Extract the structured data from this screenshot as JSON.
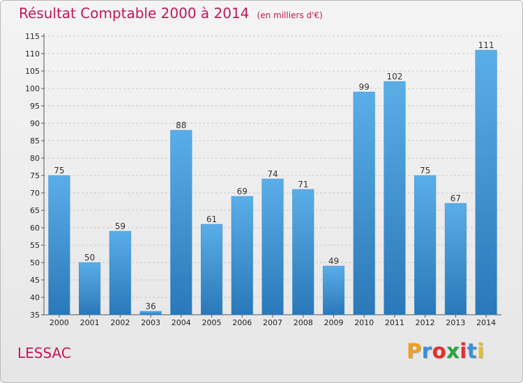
{
  "header": {
    "title": "Résultat Comptable 2000 à 2014",
    "subtitle": "(en milliers d'€)"
  },
  "location": "LESSAC",
  "logo": {
    "text": "Proxiti",
    "colors": [
      "#f0a020",
      "#3c8fd6",
      "#e03030",
      "#2aa640",
      "#e03030",
      "#3c8fd6",
      "#e6c020"
    ]
  },
  "chart_data": {
    "type": "bar",
    "title": "Résultat Comptable 2000 à 2014",
    "subtitle": "(en milliers d'€)",
    "categories": [
      "2000",
      "2001",
      "2002",
      "2003",
      "2004",
      "2005",
      "2006",
      "2007",
      "2008",
      "2009",
      "2010",
      "2011",
      "2012",
      "2013",
      "2014"
    ],
    "values": [
      75,
      50,
      59,
      36,
      88,
      61,
      69,
      74,
      71,
      49,
      99,
      102,
      75,
      67,
      111
    ],
    "ylim": [
      35,
      115
    ],
    "yticks": [
      35,
      40,
      45,
      50,
      55,
      60,
      65,
      70,
      75,
      80,
      85,
      90,
      95,
      100,
      105,
      110,
      115
    ],
    "grid": true,
    "bar_color_top": "#5aaee8",
    "bar_color_bottom": "#2a78b8"
  }
}
